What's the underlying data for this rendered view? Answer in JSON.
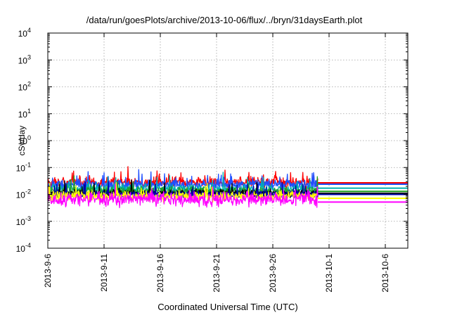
{
  "chart_data": {
    "type": "line",
    "title": "/data/run/goesPlots/archive/2013-10-06/flux/../bryn/31daysEarth.plot",
    "xlabel": "Coordinated Universal Time (UTC)",
    "ylabel": "cSv/day",
    "yscale": "log",
    "ylim_exponents": [
      -4,
      4
    ],
    "y_tick_labels": [
      {
        "base": "10",
        "exp": "-4"
      },
      {
        "base": "10",
        "exp": "-3"
      },
      {
        "base": "10",
        "exp": "-2"
      },
      {
        "base": "10",
        "exp": "-1"
      },
      {
        "base": "10",
        "exp": "0"
      },
      {
        "base": "10",
        "exp": "1"
      },
      {
        "base": "10",
        "exp": "2"
      },
      {
        "base": "10",
        "exp": "3"
      },
      {
        "base": "10",
        "exp": "4"
      }
    ],
    "xlim": [
      "2013-09-06",
      "2013-10-08"
    ],
    "x_tick_labels": [
      "2013-9-6",
      "2013-9-11",
      "2013-9-16",
      "2013-9-21",
      "2013-9-26",
      "2013-10-1",
      "2013-10-6"
    ],
    "x_tick_dates": [
      "2013-09-06",
      "2013-09-11",
      "2013-09-16",
      "2013-09-21",
      "2013-09-26",
      "2013-10-01",
      "2013-10-06"
    ],
    "grid": true,
    "data_end": "2013-09-30",
    "series": [
      {
        "color": "#ff0000",
        "level": 0.028,
        "flat_level": 0.027,
        "noise": 0.32
      },
      {
        "color": "#1f4fff",
        "level": 0.023,
        "flat_level": 0.024,
        "noise": 0.3
      },
      {
        "color": "#00b0b0",
        "level": 0.016,
        "flat_level": 0.017,
        "noise": 0.28
      },
      {
        "color": "#22a022",
        "level": 0.013,
        "flat_level": 0.013,
        "noise": 0.28
      },
      {
        "color": "#000000",
        "level": 0.011,
        "flat_level": 0.011,
        "noise": 0.22
      },
      {
        "color": "#0000aa",
        "level": 0.01,
        "flat_level": 0.01,
        "noise": 0.22
      },
      {
        "color": "#ffff00",
        "level": 0.0085,
        "flat_level": 0.0072,
        "noise": 0.3
      },
      {
        "color": "#ff00ff",
        "level": 0.0065,
        "flat_level": 0.0052,
        "noise": 0.4
      }
    ]
  }
}
